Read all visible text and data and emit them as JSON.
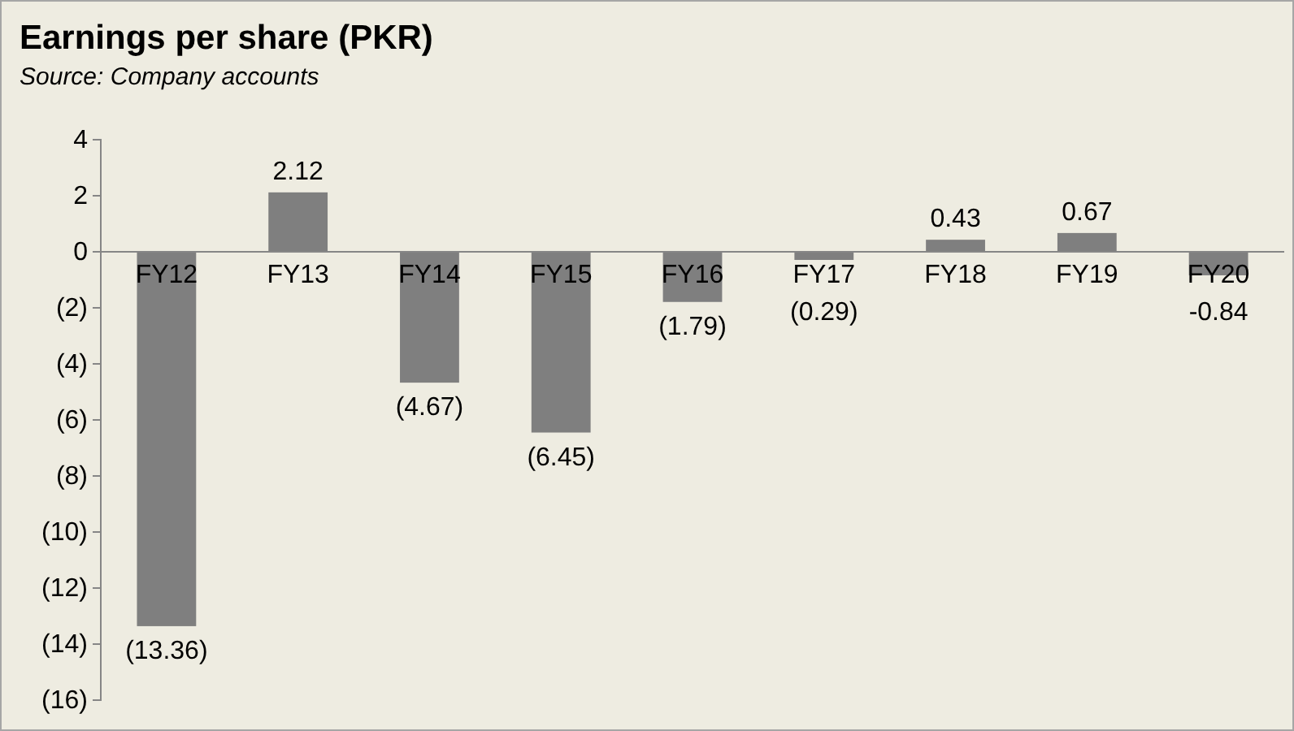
{
  "chart_data": {
    "type": "bar",
    "title": "Earnings per share (PKR)",
    "annotations": [
      "Source: Company accounts"
    ],
    "categories": [
      "FY12",
      "FY13",
      "FY14",
      "FY15",
      "FY16",
      "FY17",
      "FY18",
      "FY19",
      "FY20"
    ],
    "values": [
      -13.36,
      2.12,
      -4.67,
      -6.45,
      -1.79,
      -0.29,
      0.43,
      0.67,
      -0.84
    ],
    "value_labels": [
      "(13.36)",
      "2.12",
      "(4.67)",
      "(6.45)",
      "(1.79)",
      "(0.29)",
      "0.43",
      "0.67",
      "-0.84"
    ],
    "color": "#7f7f7f",
    "ylim": [
      -16,
      4
    ],
    "yticks": [
      4,
      2,
      0,
      {
        "value": -2,
        "label": "(2)"
      },
      {
        "value": -4,
        "label": "(4)"
      },
      {
        "value": -6,
        "label": "(6)"
      },
      {
        "value": -8,
        "label": "(8)"
      },
      {
        "value": -10,
        "label": "(10)"
      },
      {
        "value": -12,
        "label": "(12)"
      },
      {
        "value": -14,
        "label": "(14)"
      },
      {
        "value": -16,
        "label": "(16)"
      }
    ],
    "grid": false
  }
}
